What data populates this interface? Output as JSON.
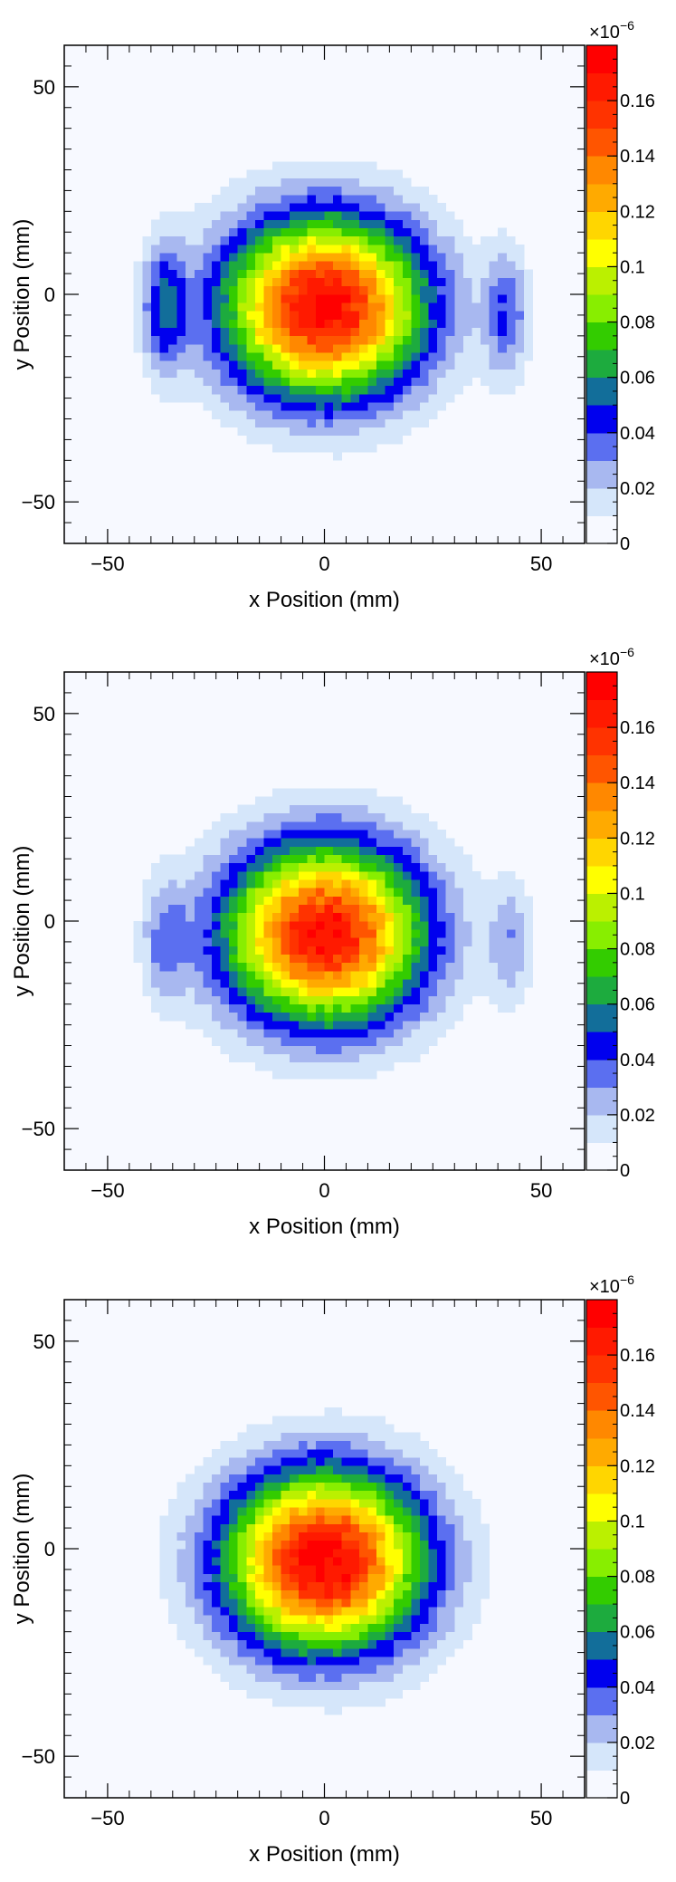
{
  "chart_data": [
    {
      "type": "heatmap",
      "title": "",
      "xlabel": "x Position (mm)",
      "ylabel": "y Position (mm)",
      "xlim": [
        -60,
        60
      ],
      "ylim": [
        -60,
        60
      ],
      "x_ticks": [
        "−50",
        "0",
        "50"
      ],
      "y_ticks": [
        "−50",
        "0",
        "50"
      ],
      "colorbar": {
        "range": [
          0,
          0.18
        ],
        "ticks": [
          "0",
          "0.02",
          "0.04",
          "0.06",
          "0.08",
          "0.1",
          "0.12",
          "0.14",
          "0.16"
        ],
        "multiplier": "×10",
        "exponent": "−6"
      },
      "blobs": [
        {
          "x": 0,
          "y": -3,
          "sx": 16,
          "sy": 15,
          "peak": 0.175
        },
        {
          "x": -37,
          "y": -3,
          "sx": 3.5,
          "sy": 11,
          "peak": 0.045
        },
        {
          "x": 42,
          "y": -5,
          "sx": 3.5,
          "sy": 11,
          "peak": 0.037
        }
      ]
    },
    {
      "type": "heatmap",
      "title": "",
      "xlabel": "x Position (mm)",
      "ylabel": "y Position (mm)",
      "xlim": [
        -60,
        60
      ],
      "ylim": [
        -60,
        60
      ],
      "x_ticks": [
        "−50",
        "0",
        "50"
      ],
      "y_ticks": [
        "−50",
        "0",
        "50"
      ],
      "colorbar": {
        "range": [
          0,
          0.18
        ],
        "ticks": [
          "0",
          "0.02",
          "0.04",
          "0.06",
          "0.08",
          "0.1",
          "0.12",
          "0.14",
          "0.16"
        ],
        "multiplier": "×10",
        "exponent": "−6"
      },
      "blobs": [
        {
          "x": 0,
          "y": -3,
          "sx": 16,
          "sy": 15,
          "peak": 0.17
        },
        {
          "x": -37,
          "y": -5,
          "sx": 3.5,
          "sy": 11,
          "peak": 0.027
        },
        {
          "x": 43,
          "y": -5,
          "sx": 3.5,
          "sy": 11,
          "peak": 0.026
        }
      ]
    },
    {
      "type": "heatmap",
      "title": "",
      "xlabel": "x Position (mm)",
      "ylabel": "y Position (mm)",
      "xlim": [
        -60,
        60
      ],
      "ylim": [
        -60,
        60
      ],
      "x_ticks": [
        "−50",
        "0",
        "50"
      ],
      "y_ticks": [
        "−50",
        "0",
        "50"
      ],
      "colorbar": {
        "range": [
          0,
          0.18
        ],
        "ticks": [
          "0",
          "0.02",
          "0.04",
          "0.06",
          "0.08",
          "0.1",
          "0.12",
          "0.14",
          "0.16"
        ],
        "multiplier": "×10",
        "exponent": "−6"
      },
      "blobs": [
        {
          "x": 0,
          "y": -3,
          "sx": 16,
          "sy": 15,
          "peak": 0.178
        }
      ]
    }
  ],
  "palette": [
    "#f7f9ff",
    "#d5e6fa",
    "#a8b8f0",
    "#5b6ff0",
    "#0000ee",
    "#126e9a",
    "#1dab3e",
    "#33cc00",
    "#88ee00",
    "#bbf000",
    "#ffff00",
    "#ffd600",
    "#ffaa00",
    "#ff8800",
    "#ff5500",
    "#ff3300",
    "#ff1a00",
    "#ff0000"
  ]
}
